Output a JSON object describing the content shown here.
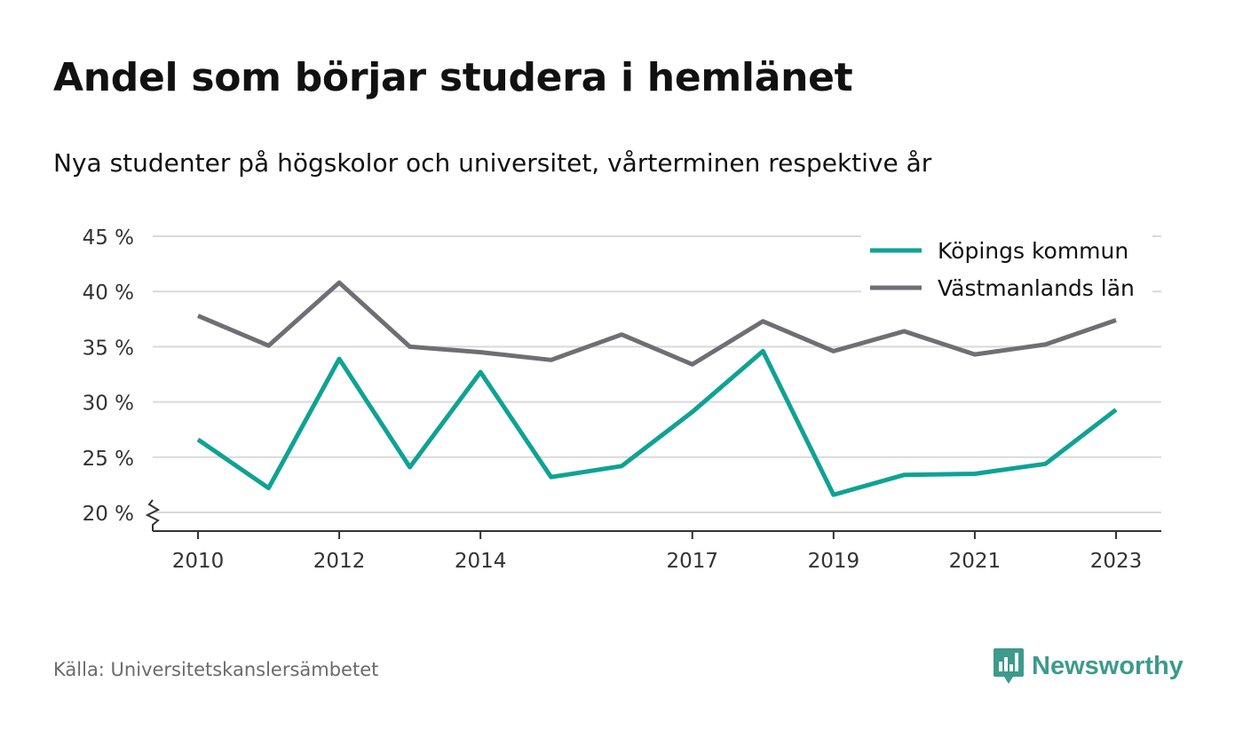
{
  "title": "Andel som börjar studera i hemlänet",
  "subtitle": "Nya studenter på högskolor och universitet, vårterminen respektive år",
  "source": "Källa: Universitetskanslersämbetet",
  "brand": {
    "name": "Newsworthy",
    "icon": "newsworthy-logo-icon",
    "color": "#3d9a8c"
  },
  "chart_data": {
    "type": "line",
    "x": [
      2010,
      2011,
      2012,
      2013,
      2014,
      2015,
      2016,
      2017,
      2018,
      2019,
      2020,
      2021,
      2022,
      2023
    ],
    "x_tick_values": [
      2010,
      2012,
      2014,
      2017,
      2019,
      2021,
      2023
    ],
    "x_tick_labels": [
      "2010",
      "2012",
      "2014",
      "2017",
      "2019",
      "2021",
      "2023"
    ],
    "y_tick_values": [
      20,
      25,
      30,
      35,
      40,
      45
    ],
    "y_tick_labels": [
      "20 %",
      "25 %",
      "30 %",
      "35 %",
      "40 %",
      "45 %"
    ],
    "ylim": [
      20,
      45
    ],
    "y_axis_break": true,
    "grid": true,
    "legend_position": "top-right",
    "series": [
      {
        "name": "Köpings kommun",
        "color": "#0fa294",
        "values": [
          26.6,
          22.2,
          33.9,
          24.1,
          32.7,
          23.2,
          24.2,
          29.1,
          34.6,
          21.6,
          23.4,
          23.5,
          24.4,
          29.3
        ]
      },
      {
        "name": "Västmanlands län",
        "color": "#6f6e74",
        "values": [
          37.8,
          35.1,
          40.8,
          35.0,
          34.5,
          33.8,
          36.1,
          33.4,
          37.3,
          34.6,
          36.4,
          34.3,
          35.2,
          37.4
        ]
      }
    ]
  }
}
